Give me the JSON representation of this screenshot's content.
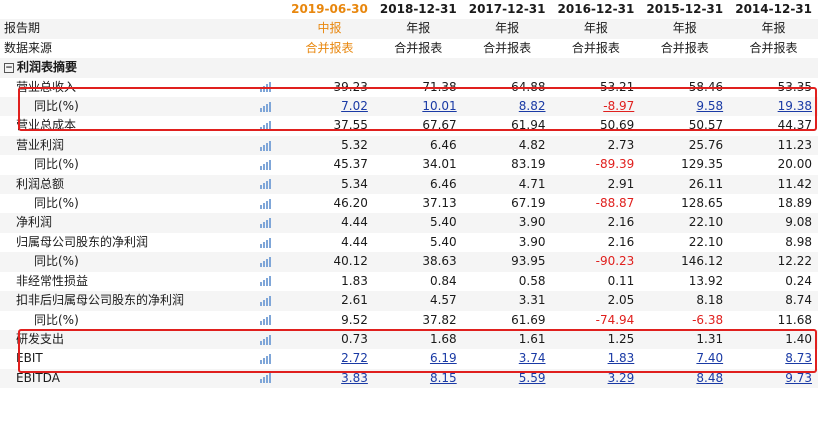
{
  "columns": [
    {
      "date": "2019-06-30",
      "type": "中报",
      "source": "合并报表",
      "highlight": true
    },
    {
      "date": "2018-12-31",
      "type": "年报",
      "source": "合并报表",
      "highlight": false
    },
    {
      "date": "2017-12-31",
      "type": "年报",
      "source": "合并报表",
      "highlight": false
    },
    {
      "date": "2016-12-31",
      "type": "年报",
      "source": "合并报表",
      "highlight": false
    },
    {
      "date": "2015-12-31",
      "type": "年报",
      "source": "合并报表",
      "highlight": false
    },
    {
      "date": "2014-12-31",
      "type": "年报",
      "source": "合并报表",
      "highlight": false
    }
  ],
  "header_labels": {
    "report_period": "报告期",
    "data_source": "数据来源"
  },
  "section": {
    "toggle": "−",
    "label": "利润表摘要"
  },
  "rows": [
    {
      "label": "营业总收入",
      "level": 1,
      "values": [
        "39.23",
        "71.38",
        "64.88",
        "53.21",
        "58.46",
        "53.35"
      ]
    },
    {
      "label": "同比(%)",
      "level": 2,
      "values": [
        "7.02",
        "10.01",
        "8.82",
        "-8.97",
        "9.58",
        "19.38"
      ],
      "neg": [
        false,
        false,
        false,
        true,
        false,
        false
      ],
      "underline": true
    },
    {
      "label": "营业总成本",
      "level": 1,
      "values": [
        "37.55",
        "67.67",
        "61.94",
        "50.69",
        "50.57",
        "44.37"
      ]
    },
    {
      "label": "营业利润",
      "level": 1,
      "values": [
        "5.32",
        "6.46",
        "4.82",
        "2.73",
        "25.76",
        "11.23"
      ]
    },
    {
      "label": "同比(%)",
      "level": 2,
      "values": [
        "45.37",
        "34.01",
        "83.19",
        "-89.39",
        "129.35",
        "20.00"
      ],
      "neg": [
        false,
        false,
        false,
        true,
        false,
        false
      ]
    },
    {
      "label": "利润总额",
      "level": 1,
      "values": [
        "5.34",
        "6.46",
        "4.71",
        "2.91",
        "26.11",
        "11.42"
      ]
    },
    {
      "label": "同比(%)",
      "level": 2,
      "values": [
        "46.20",
        "37.13",
        "67.19",
        "-88.87",
        "128.65",
        "18.89"
      ],
      "neg": [
        false,
        false,
        false,
        true,
        false,
        false
      ]
    },
    {
      "label": "净利润",
      "level": 1,
      "values": [
        "4.44",
        "5.40",
        "3.90",
        "2.16",
        "22.10",
        "9.08"
      ]
    },
    {
      "label": "归属母公司股东的净利润",
      "level": 1,
      "values": [
        "4.44",
        "5.40",
        "3.90",
        "2.16",
        "22.10",
        "8.98"
      ]
    },
    {
      "label": "同比(%)",
      "level": 2,
      "values": [
        "40.12",
        "38.63",
        "93.95",
        "-90.23",
        "146.12",
        "12.22"
      ],
      "neg": [
        false,
        false,
        false,
        true,
        false,
        false
      ]
    },
    {
      "label": "非经常性损益",
      "level": 1,
      "values": [
        "1.83",
        "0.84",
        "0.58",
        "0.11",
        "13.92",
        "0.24"
      ]
    },
    {
      "label": "扣非后归属母公司股东的净利润",
      "level": 1,
      "values": [
        "2.61",
        "4.57",
        "3.31",
        "2.05",
        "8.18",
        "8.74"
      ]
    },
    {
      "label": "同比(%)",
      "level": 2,
      "values": [
        "9.52",
        "37.82",
        "61.69",
        "-74.94",
        "-6.38",
        "11.68"
      ],
      "neg": [
        false,
        false,
        false,
        true,
        true,
        false
      ]
    },
    {
      "label": "研发支出",
      "level": 1,
      "values": [
        "0.73",
        "1.68",
        "1.61",
        "1.25",
        "1.31",
        "1.40"
      ]
    },
    {
      "label": "EBIT",
      "level": 1,
      "values": [
        "2.72",
        "6.19",
        "3.74",
        "1.83",
        "7.40",
        "8.73"
      ],
      "underline": true
    },
    {
      "label": "EBITDA",
      "level": 1,
      "values": [
        "3.83",
        "8.15",
        "5.59",
        "3.29",
        "8.48",
        "9.73"
      ],
      "underline": true
    }
  ],
  "icons": {
    "row_chart": "bar-chart-icon",
    "section_toggle": "collapse-toggle-icon"
  },
  "colors": {
    "highlight_header": "#e8870e",
    "negative": "#e0201e",
    "box": "#e0201e",
    "link": "#1a3aa5"
  }
}
